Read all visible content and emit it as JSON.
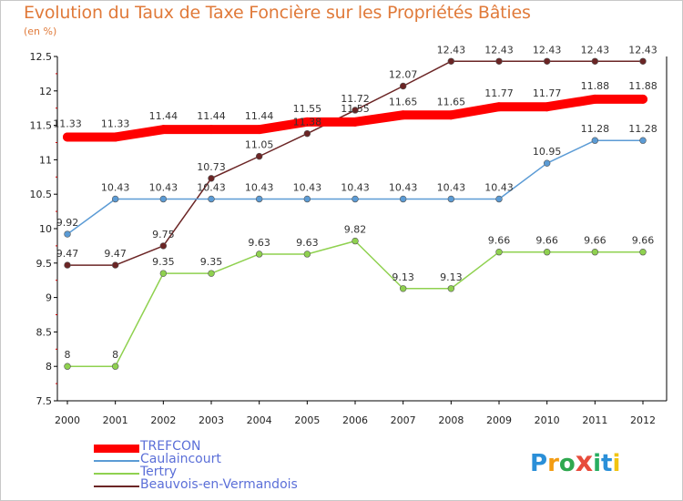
{
  "chart_data": {
    "type": "line",
    "title": "Evolution du Taux de Taxe Foncière sur les Propriétés Bâties",
    "subtitle": "(en %)",
    "xlabel": "",
    "ylabel": "",
    "ylim": [
      7.5,
      12.5
    ],
    "yticks": [
      "7.5",
      "8",
      "8.5",
      "9",
      "9.5",
      "10",
      "10.5",
      "11",
      "11.5",
      "12",
      "12.5"
    ],
    "ytick_values": [
      7.5,
      8,
      8.5,
      9,
      9.5,
      10,
      10.5,
      11,
      11.5,
      12,
      12.5
    ],
    "categories": [
      "2000",
      "2001",
      "2002",
      "2003",
      "2004",
      "2005",
      "2006",
      "2007",
      "2008",
      "2009",
      "2010",
      "2011",
      "2012"
    ],
    "series": [
      {
        "name": "TREFCON",
        "color": "#ff0000",
        "labels": [
          "11.33",
          "11.33",
          "11.44",
          "11.44",
          "11.44",
          "11.55",
          "11.55",
          "11.65",
          "11.65",
          "11.77",
          "11.77",
          "11.88",
          "11.88"
        ],
        "values": [
          11.33,
          11.33,
          11.44,
          11.44,
          11.44,
          11.55,
          11.55,
          11.65,
          11.65,
          11.77,
          11.77,
          11.88,
          11.88
        ]
      },
      {
        "name": "Caulaincourt",
        "color": "#5b9bd5",
        "labels": [
          "9.92",
          "10.43",
          "10.43",
          "10.43",
          "10.43",
          "10.43",
          "10.43",
          "10.43",
          "10.43",
          "10.43",
          "10.95",
          "11.28",
          "11.28"
        ],
        "values": [
          9.92,
          10.43,
          10.43,
          10.43,
          10.43,
          10.43,
          10.43,
          10.43,
          10.43,
          10.43,
          10.95,
          11.28,
          11.28
        ]
      },
      {
        "name": "Tertry",
        "color": "#8fd14f",
        "labels": [
          "8",
          "8",
          "9.35",
          "9.35",
          "9.63",
          "9.63",
          "9.82",
          "9.13",
          "9.13",
          "9.66",
          "9.66",
          "9.66",
          "9.66"
        ],
        "values": [
          8,
          8,
          9.35,
          9.35,
          9.63,
          9.63,
          9.82,
          9.13,
          9.13,
          9.66,
          9.66,
          9.66,
          9.66
        ]
      },
      {
        "name": "Beauvois-en-Vermandois",
        "color": "#6b2525",
        "labels": [
          "9.47",
          "9.47",
          "9.75",
          "10.73",
          "11.05",
          "11.38",
          "11.72",
          "12.07",
          "12.43",
          "12.43",
          "12.43",
          "12.43",
          "12.43"
        ],
        "values": [
          9.47,
          9.47,
          9.75,
          10.73,
          11.05,
          11.38,
          11.72,
          12.07,
          12.43,
          12.43,
          12.43,
          12.43,
          12.43
        ]
      }
    ],
    "legend_position": "bottom-left",
    "grid": false
  },
  "brand": {
    "letters": [
      "P",
      "r",
      "o",
      "x",
      "i",
      "t",
      "i"
    ],
    "colors": [
      "#2a8fd8",
      "#f39c12",
      "#2fa84f",
      "#e74c3c",
      "#27ae60",
      "#2a8fd8",
      "#f1c40f"
    ]
  }
}
